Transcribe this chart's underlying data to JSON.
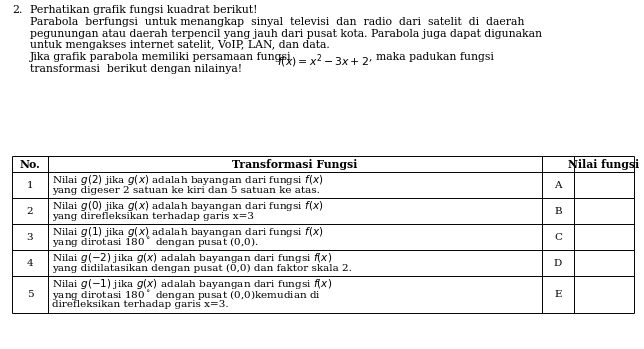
{
  "number": "2.",
  "intro_lines": [
    "Perhatikan grafik fungsi kuadrat berikut!",
    "Parabola  berfungsi  untuk menangkap  sinyal  televisi  dan  radio  dari  satelit  di  daerah",
    "pegunungan atau daerah terpencil yang jauh dari pusat kota. Parabola juga dapat digunakan",
    "untuk mengakses internet satelit, VoIP, LAN, dan data."
  ],
  "math_line_prefix": "Jika grafik parabola memiliki persamaan fungsi ",
  "math_formula": "$f(x) = x^2 - 3x + 2$",
  "math_line_suffix": ", maka padukan fungsi",
  "last_line": "transformasi  berikut dengan nilainya!",
  "col_headers": [
    "No.",
    "Transformasi Fungsi",
    "",
    "Nilai fungsi"
  ],
  "rows": [
    {
      "no": "1",
      "lines": [
        "Nilai $g(2)$ jika $g(x)$ adalah bayangan dari fungsi $f(x)$",
        "yang digeser 2 satuan ke kiri dan 5 satuan ke atas."
      ],
      "label": "A"
    },
    {
      "no": "2",
      "lines": [
        "Nilai $g(0)$ jika $g(x)$ adalah bayangan dari fungsi $f(x)$",
        "yang direfleksikan terhadap garis x=3"
      ],
      "label": "B"
    },
    {
      "no": "3",
      "lines": [
        "Nilai $g(1)$ jika $g(x)$ adalah bayangan dari fungsi $f(x)$",
        "yang dirotasi 180$^\\circ$ dengan pusat (0,0)."
      ],
      "label": "C"
    },
    {
      "no": "4",
      "lines": [
        "Nilai $g(-2)$ jika $g(x)$ adalah bayangan dari fungsi $f(x)$",
        "yang didilatasikan dengan pusat (0,0) dan faktor skala 2."
      ],
      "label": "D"
    },
    {
      "no": "5",
      "lines": [
        "Nilai $g(-1)$ jika $g(x)$ adalah bayangan dari fungsi $f(x)$",
        "yang dirotasi 180$^\\circ$ dengan pusat (0,0)kemudian di",
        "direfleksikan terhadap garis x=3."
      ],
      "label": "E"
    }
  ],
  "bg_color": "#ffffff",
  "text_color": "#000000",
  "fs_intro": 7.8,
  "fs_table": 7.5,
  "fs_bold": 7.8
}
